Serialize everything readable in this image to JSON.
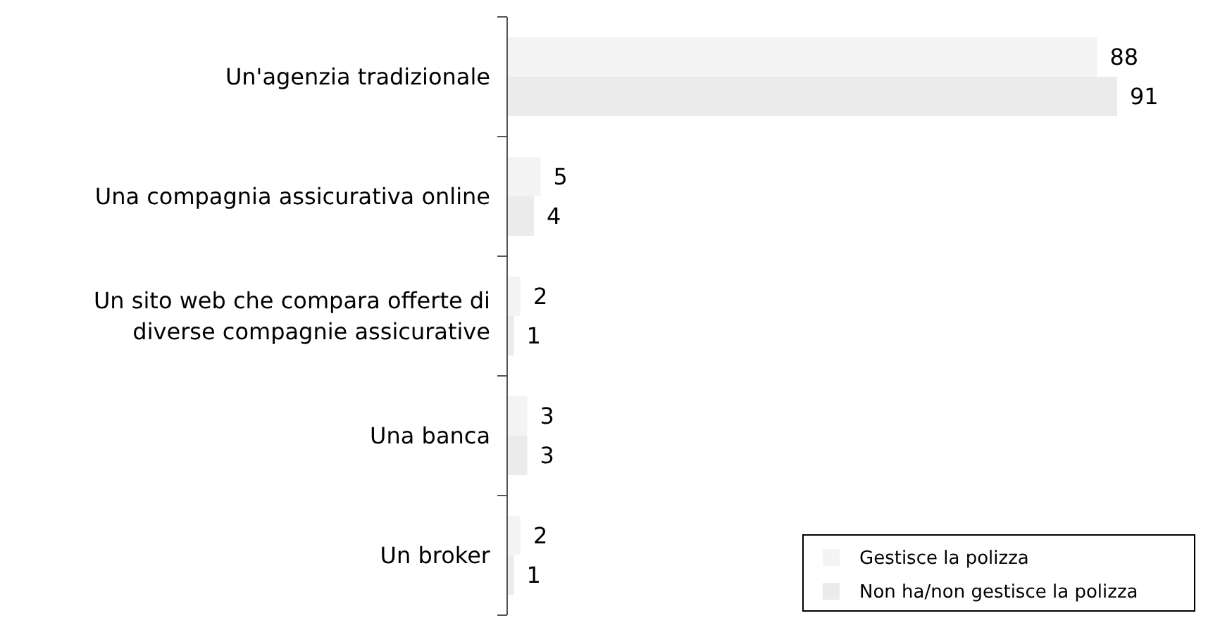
{
  "chart_data": {
    "type": "bar",
    "orientation": "horizontal",
    "categories": [
      "Un'agenzia tradizionale",
      "Una compagnia assicurativa online",
      "Un sito web che compara offerte di diverse compagnie assicurative",
      "Una banca",
      "Un broker"
    ],
    "series": [
      {
        "name": "Gestisce la polizza",
        "color": "#f4f4f4",
        "values": [
          88,
          5,
          2,
          3,
          2
        ]
      },
      {
        "name": "Non ha/non gestisce la polizza",
        "color": "#ebebeb",
        "values": [
          91,
          4,
          1,
          3,
          1
        ]
      }
    ],
    "data_labels": true,
    "legend": "bottom right",
    "grid": false
  }
}
